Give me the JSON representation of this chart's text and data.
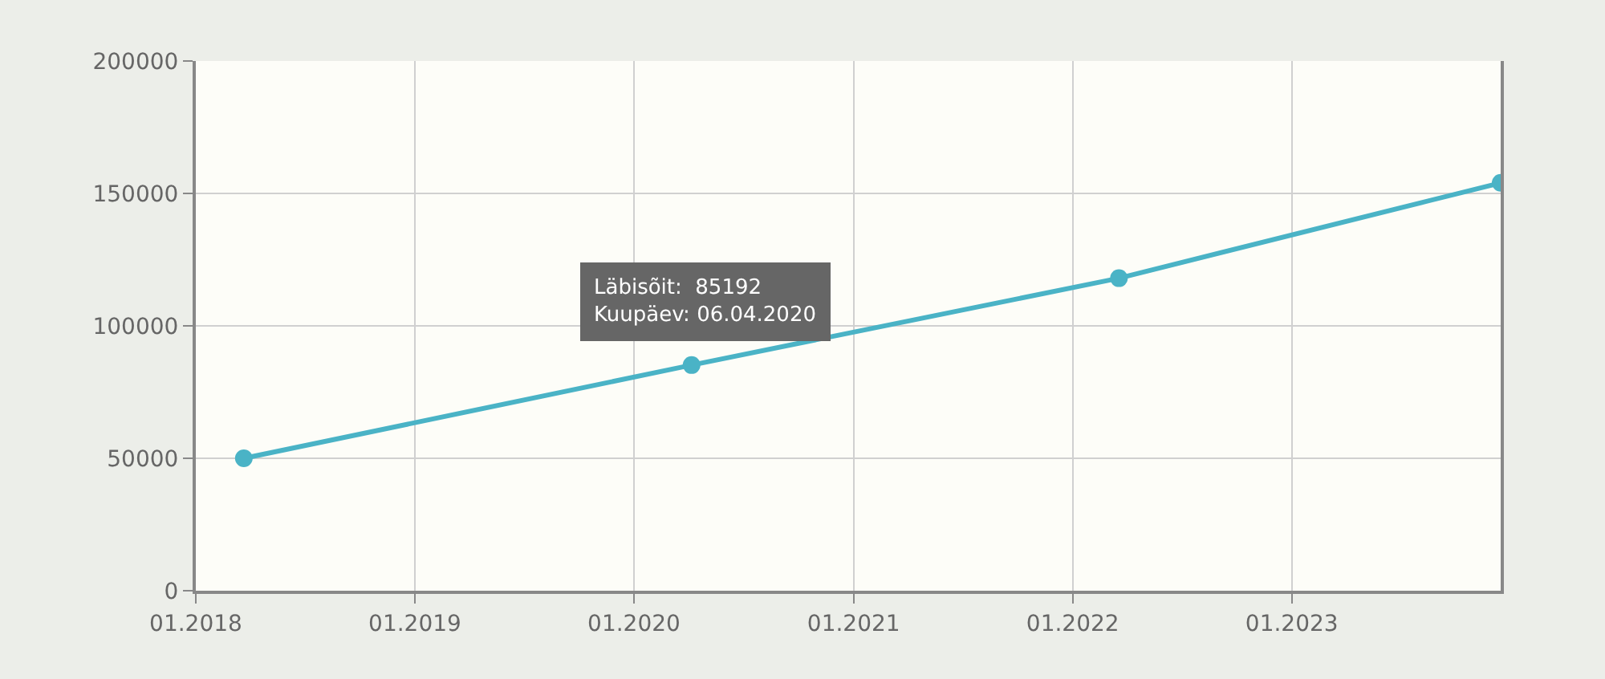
{
  "chart_data": {
    "type": "line",
    "x": [
      "2018-03-22",
      "2020-04-06",
      "2022-03-19",
      "2023-12-15"
    ],
    "series": [
      {
        "color": "#4ab3c6",
        "values": [
          50000,
          85192,
          118000,
          154000
        ]
      }
    ],
    "xlim": [
      "2018-01-01",
      "2023-12-15"
    ],
    "xticks": [
      {
        "value": "2018-01-01",
        "label": "01.2018"
      },
      {
        "value": "2019-01-01",
        "label": "01.2019"
      },
      {
        "value": "2020-01-01",
        "label": "01.2020"
      },
      {
        "value": "2021-01-01",
        "label": "01.2021"
      },
      {
        "value": "2022-01-01",
        "label": "01.2022"
      },
      {
        "value": "2023-01-01",
        "label": "01.2023"
      }
    ],
    "ylim": [
      0,
      200000
    ],
    "yticks": [
      0,
      50000,
      100000,
      150000,
      200000
    ],
    "annotations": [
      {
        "text": "Läbisõit:  85192\nKuupäev: 06.04.2020",
        "x": "2020-04-06",
        "y": 85192
      }
    ],
    "grid": true,
    "marker": "circle",
    "line_style": "solid",
    "legend": false
  }
}
